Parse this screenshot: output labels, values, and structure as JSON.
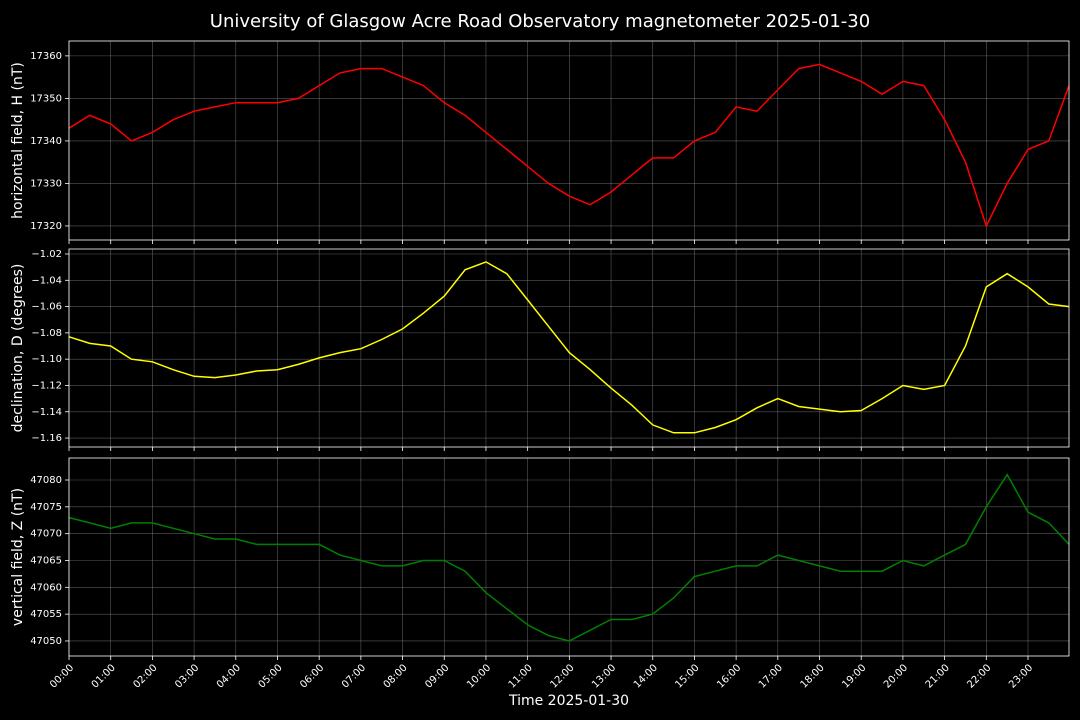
{
  "title": "University of Glasgow Acre Road Observatory magnetometer 2025-01-30",
  "xlabel": "Time 2025-01-30",
  "xlim": [
    "00:00",
    "23:59"
  ],
  "xticks": [
    "00:00",
    "01:00",
    "02:00",
    "03:00",
    "04:00",
    "05:00",
    "06:00",
    "07:00",
    "08:00",
    "09:00",
    "10:00",
    "11:00",
    "12:00",
    "13:00",
    "14:00",
    "15:00",
    "16:00",
    "17:00",
    "18:00",
    "19:00",
    "20:00",
    "21:00",
    "22:00",
    "23:00"
  ],
  "chart_data": [
    {
      "type": "line",
      "ylabel": "horizontal field, H (nT)",
      "color": "#ff0000",
      "grid": true,
      "ylim": [
        17316.7,
        17363.5
      ],
      "yticks": [
        17320,
        17330,
        17340,
        17350,
        17360
      ],
      "x": [
        "00:00",
        "00:30",
        "01:00",
        "01:30",
        "02:00",
        "02:30",
        "03:00",
        "03:30",
        "04:00",
        "04:30",
        "05:00",
        "05:30",
        "06:00",
        "06:30",
        "07:00",
        "07:30",
        "08:00",
        "08:30",
        "09:00",
        "09:30",
        "10:00",
        "10:30",
        "11:00",
        "11:30",
        "12:00",
        "12:30",
        "13:00",
        "13:30",
        "14:00",
        "14:30",
        "15:00",
        "15:30",
        "16:00",
        "16:30",
        "17:00",
        "17:30",
        "18:00",
        "18:30",
        "19:00",
        "19:30",
        "20:00",
        "20:30",
        "21:00",
        "21:30",
        "22:00",
        "22:30",
        "23:00",
        "23:30",
        "23:59"
      ],
      "values": [
        17343,
        17346,
        17344,
        17340,
        17342,
        17345,
        17347,
        17348,
        17349,
        17349,
        17349,
        17350,
        17353,
        17356,
        17357,
        17357,
        17355,
        17353,
        17349,
        17346,
        17342,
        17338,
        17334,
        17330,
        17327,
        17325,
        17328,
        17332,
        17336,
        17336,
        17340,
        17342,
        17348,
        17347,
        17352,
        17357,
        17358,
        17356,
        17354,
        17351,
        17354,
        17353,
        17345,
        17335,
        17320,
        17330,
        17338,
        17340,
        17353
      ]
    },
    {
      "type": "line",
      "ylabel": "declination, D (degrees)",
      "color": "#ffff00",
      "grid": true,
      "ylim": [
        -1.1668,
        -1.0162
      ],
      "yticks": [
        {
          "value": -1.16,
          "label": "−1.16"
        },
        {
          "value": -1.14,
          "label": "−1.14"
        },
        {
          "value": -1.12,
          "label": "−1.12"
        },
        {
          "value": -1.1,
          "label": "−1.10"
        },
        {
          "value": -1.08,
          "label": "−1.08"
        },
        {
          "value": -1.06,
          "label": "−1.06"
        },
        {
          "value": -1.04,
          "label": "−1.04"
        },
        {
          "value": -1.02,
          "label": "−1.02"
        }
      ],
      "x": [
        "00:00",
        "00:30",
        "01:00",
        "01:30",
        "02:00",
        "02:30",
        "03:00",
        "03:30",
        "04:00",
        "04:30",
        "05:00",
        "05:30",
        "06:00",
        "06:30",
        "07:00",
        "07:30",
        "08:00",
        "08:30",
        "09:00",
        "09:30",
        "10:00",
        "10:30",
        "11:00",
        "11:30",
        "12:00",
        "12:30",
        "13:00",
        "13:30",
        "14:00",
        "14:30",
        "15:00",
        "15:30",
        "16:00",
        "16:30",
        "17:00",
        "17:30",
        "18:00",
        "18:30",
        "19:00",
        "19:30",
        "20:00",
        "20:30",
        "21:00",
        "21:30",
        "22:00",
        "22:30",
        "23:00",
        "23:30",
        "23:59"
      ],
      "values": [
        -1.083,
        -1.088,
        -1.09,
        -1.1,
        -1.102,
        -1.108,
        -1.113,
        -1.114,
        -1.112,
        -1.109,
        -1.108,
        -1.104,
        -1.099,
        -1.095,
        -1.092,
        -1.085,
        -1.077,
        -1.065,
        -1.052,
        -1.032,
        -1.026,
        -1.035,
        -1.055,
        -1.075,
        -1.095,
        -1.108,
        -1.122,
        -1.135,
        -1.15,
        -1.156,
        -1.156,
        -1.152,
        -1.146,
        -1.137,
        -1.13,
        -1.136,
        -1.138,
        -1.14,
        -1.139,
        -1.13,
        -1.12,
        -1.123,
        -1.12,
        -1.09,
        -1.045,
        -1.035,
        -1.045,
        -1.058,
        -1.06
      ]
    },
    {
      "type": "line",
      "ylabel": "vertical field, Z (nT)",
      "color": "#008000",
      "grid": true,
      "ylim": [
        47047.2,
        47084.1
      ],
      "yticks": [
        47050,
        47055,
        47060,
        47065,
        47070,
        47075,
        47080
      ],
      "x": [
        "00:00",
        "00:30",
        "01:00",
        "01:30",
        "02:00",
        "02:30",
        "03:00",
        "03:30",
        "04:00",
        "04:30",
        "05:00",
        "05:30",
        "06:00",
        "06:30",
        "07:00",
        "07:30",
        "08:00",
        "08:30",
        "09:00",
        "09:30",
        "10:00",
        "10:30",
        "11:00",
        "11:30",
        "12:00",
        "12:30",
        "13:00",
        "13:30",
        "14:00",
        "14:30",
        "15:00",
        "15:30",
        "16:00",
        "16:30",
        "17:00",
        "17:30",
        "18:00",
        "18:30",
        "19:00",
        "19:30",
        "20:00",
        "20:30",
        "21:00",
        "21:30",
        "22:00",
        "22:30",
        "23:00",
        "23:30",
        "23:59"
      ],
      "values": [
        47073,
        47072,
        47071,
        47072,
        47072,
        47071,
        47070,
        47069,
        47069,
        47068,
        47068,
        47068,
        47068,
        47066,
        47065,
        47064,
        47064,
        47065,
        47065,
        47063,
        47059,
        47056,
        47053,
        47051,
        47050,
        47052,
        47054,
        47054,
        47055,
        47058,
        47062,
        47063,
        47064,
        47064,
        47066,
        47065,
        47064,
        47063,
        47063,
        47063,
        47065,
        47064,
        47066,
        47068,
        47075,
        47081,
        47074,
        47072,
        47068
      ]
    }
  ]
}
